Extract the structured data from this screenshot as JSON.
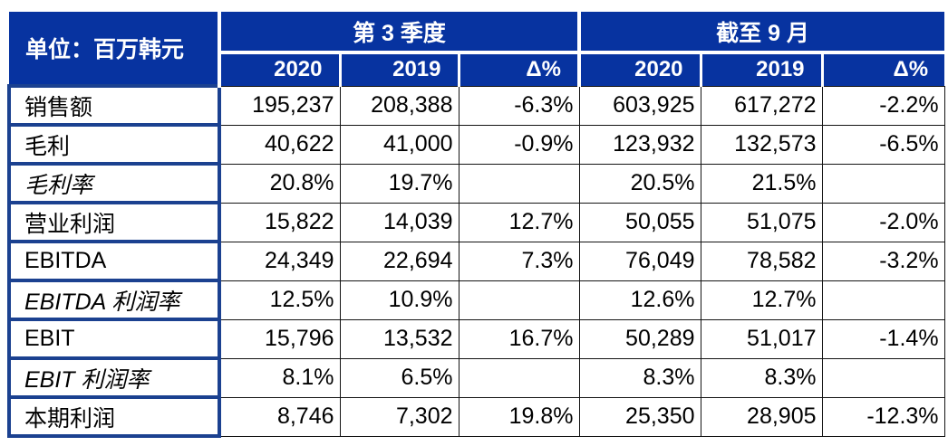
{
  "chart_data": {
    "type": "table",
    "title": "单位：百万韩元",
    "unit_label": "单位：百万韩元",
    "column_groups": [
      {
        "label": "第 3 季度",
        "columns": [
          "2020",
          "2019",
          "Δ%"
        ]
      },
      {
        "label": "截至 9 月",
        "columns": [
          "2020",
          "2019",
          "Δ%"
        ]
      }
    ],
    "rows": [
      {
        "label": "销售额",
        "italic": false,
        "values": [
          "195,237",
          "208,388",
          "-6.3%",
          "603,925",
          "617,272",
          "-2.2%"
        ]
      },
      {
        "label": "毛利",
        "italic": false,
        "values": [
          "40,622",
          "41,000",
          "-0.9%",
          "123,932",
          "132,573",
          "-6.5%"
        ]
      },
      {
        "label": "毛利率",
        "italic": true,
        "values": [
          "20.8%",
          "19.7%",
          "",
          "20.5%",
          "21.5%",
          ""
        ]
      },
      {
        "label": "营业利润",
        "italic": false,
        "values": [
          "15,822",
          "14,039",
          "12.7%",
          "50,055",
          "51,075",
          "-2.0%"
        ]
      },
      {
        "label": "EBITDA",
        "italic": false,
        "values": [
          "24,349",
          "22,694",
          "7.3%",
          "76,049",
          "78,582",
          "-3.2%"
        ]
      },
      {
        "label": "EBITDA 利润率",
        "italic": true,
        "values": [
          "12.5%",
          "10.9%",
          "",
          "12.6%",
          "12.7%",
          ""
        ]
      },
      {
        "label": "EBIT",
        "italic": false,
        "values": [
          "15,796",
          "13,532",
          "16.7%",
          "50,289",
          "51,017",
          "-1.4%"
        ]
      },
      {
        "label": "EBIT 利润率",
        "italic": true,
        "values": [
          "8.1%",
          "6.5%",
          "",
          "8.3%",
          "8.3%",
          ""
        ]
      },
      {
        "label": "本期利润",
        "italic": false,
        "values": [
          "8,746",
          "7,302",
          "19.8%",
          "25,350",
          "28,905",
          "-12.3%"
        ]
      }
    ]
  },
  "colors": {
    "header_bg": "#0733A0",
    "header_text": "#FFFFFF",
    "label_border": "#1B4190",
    "grid_line": "#141414",
    "body_text": "#000000"
  }
}
